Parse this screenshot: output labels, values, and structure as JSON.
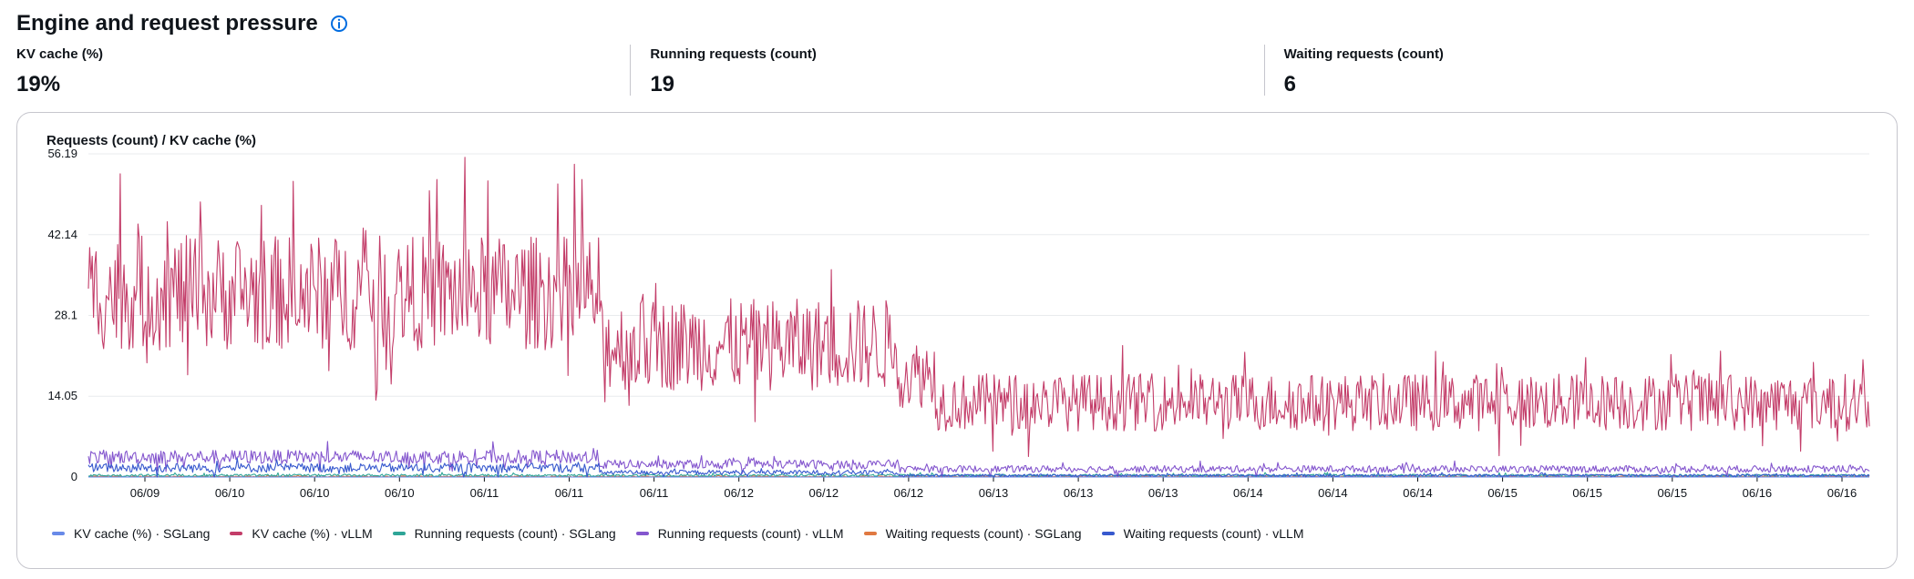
{
  "header": {
    "title": "Engine and request pressure",
    "info_icon": "info-icon"
  },
  "metrics": [
    {
      "label": "KV cache (%)",
      "value": "19%"
    },
    {
      "label": "Running requests (count)",
      "value": "19"
    },
    {
      "label": "Waiting requests (count)",
      "value": "6"
    }
  ],
  "colors": {
    "kv_sglang": "#688ae8",
    "kv_vllm": "#c33d69",
    "running_sglang": "#2ea597",
    "running_vllm": "#8456ce",
    "waiting_sglang": "#e07941",
    "waiting_vllm": "#3759ce",
    "grid": "#e9ebed",
    "axis": "#0f141a"
  },
  "chart_data": {
    "type": "line",
    "title": "Requests (count) / KV cache (%)",
    "ylim": [
      0,
      56.19
    ],
    "y_ticks": [
      "0",
      "14.05",
      "28.1",
      "42.14",
      "56.19"
    ],
    "x_ticks": [
      "06/09",
      "06/10",
      "06/10",
      "06/10",
      "06/11",
      "06/11",
      "06/11",
      "06/12",
      "06/12",
      "06/12",
      "06/13",
      "06/13",
      "06/13",
      "06/14",
      "06/14",
      "06/14",
      "06/15",
      "06/15",
      "06/15",
      "06/16",
      "06/16"
    ],
    "grid": true,
    "legend_placement": "bottom",
    "series": [
      {
        "name": "KV cache (%) · SGLang",
        "color_key": "kv_sglang",
        "segments": [
          {
            "from": 0,
            "to": 1,
            "mean": 0,
            "spread": 0,
            "max_spike": 0
          }
        ]
      },
      {
        "name": "KV cache (%) · vLLM",
        "color_key": "kv_vllm",
        "segments": [
          {
            "from": 0.0,
            "to": 0.287,
            "mean": 32,
            "spread": 10,
            "max_spike": 56.19
          },
          {
            "from": 0.287,
            "to": 0.455,
            "mean": 23,
            "spread": 8,
            "max_spike": 38
          },
          {
            "from": 0.455,
            "to": 0.475,
            "mean": 18,
            "spread": 6,
            "max_spike": 26
          },
          {
            "from": 0.475,
            "to": 1.0,
            "mean": 13,
            "spread": 5,
            "max_spike": 23
          }
        ]
      },
      {
        "name": "Running requests (count) · SGLang",
        "color_key": "running_sglang",
        "segments": [
          {
            "from": 0,
            "to": 1,
            "mean": 0.3,
            "spread": 0.2,
            "max_spike": 0.8
          }
        ]
      },
      {
        "name": "Running requests (count) · vLLM",
        "color_key": "running_vllm",
        "segments": [
          {
            "from": 0.0,
            "to": 0.287,
            "mean": 3.5,
            "spread": 1.2,
            "max_spike": 6.2
          },
          {
            "from": 0.287,
            "to": 0.455,
            "mean": 2.2,
            "spread": 0.8,
            "max_spike": 3.8
          },
          {
            "from": 0.455,
            "to": 1.0,
            "mean": 1.4,
            "spread": 0.6,
            "max_spike": 2.8
          }
        ]
      },
      {
        "name": "Waiting requests (count) · SGLang",
        "color_key": "waiting_sglang",
        "segments": [
          {
            "from": 0,
            "to": 1,
            "mean": 0.1,
            "spread": 0.1,
            "max_spike": 0.3
          }
        ]
      },
      {
        "name": "Waiting requests (count) · vLLM",
        "color_key": "waiting_vllm",
        "segments": [
          {
            "from": 0.0,
            "to": 0.287,
            "mean": 1.6,
            "spread": 0.8,
            "max_spike": 3.5
          },
          {
            "from": 0.287,
            "to": 0.455,
            "mean": 0.8,
            "spread": 0.4,
            "max_spike": 1.6
          },
          {
            "from": 0.455,
            "to": 1.0,
            "mean": 0.3,
            "spread": 0.2,
            "max_spike": 0.8
          }
        ]
      }
    ]
  }
}
